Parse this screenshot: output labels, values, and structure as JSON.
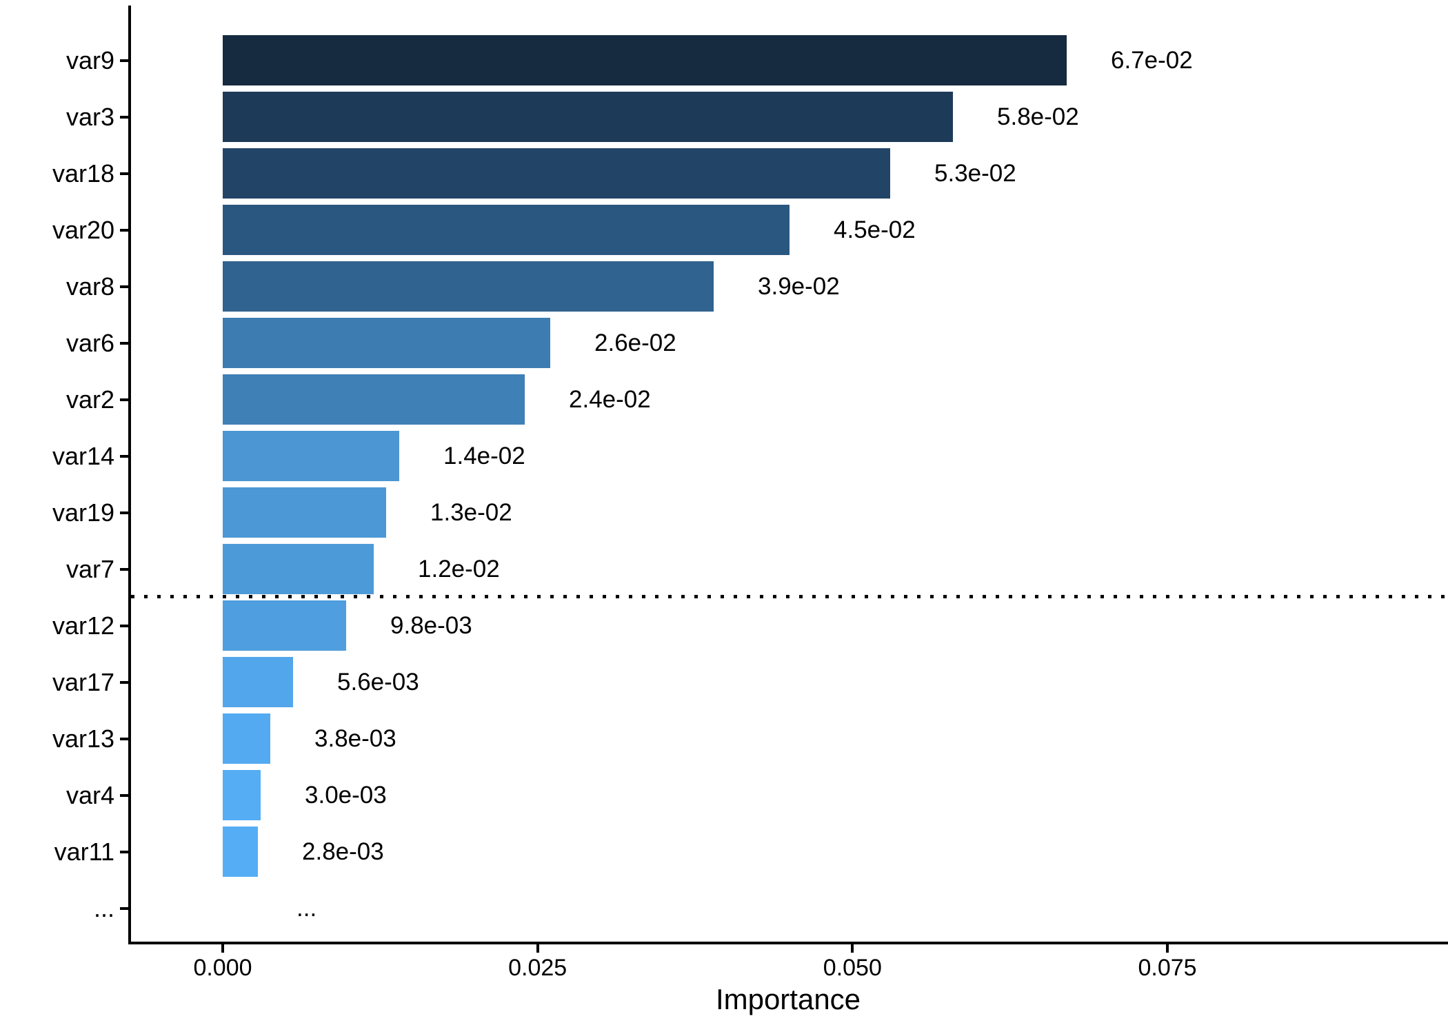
{
  "chart_data": {
    "type": "bar",
    "orientation": "horizontal",
    "title": "",
    "xlabel": "Importance",
    "ylabel": "",
    "xlim": [
      -0.0074,
      0.0973
    ],
    "grid": false,
    "legend": "none",
    "x_ticks": [
      {
        "value": 0.0,
        "label": "0.000"
      },
      {
        "value": 0.025,
        "label": "0.025"
      },
      {
        "value": 0.05,
        "label": "0.050"
      },
      {
        "value": 0.075,
        "label": "0.075"
      }
    ],
    "categories": [
      "var9",
      "var3",
      "var18",
      "var20",
      "var8",
      "var6",
      "var2",
      "var14",
      "var19",
      "var7",
      "var12",
      "var17",
      "var13",
      "var4",
      "var11",
      "..."
    ],
    "values": [
      0.067,
      0.058,
      0.053,
      0.045,
      0.039,
      0.026,
      0.024,
      0.014,
      0.013,
      0.012,
      0.0098,
      0.0056,
      0.0038,
      0.003,
      0.0028,
      null
    ],
    "bar_labels": [
      "6.7e-02",
      "5.8e-02",
      "5.3e-02",
      "4.5e-02",
      "3.9e-02",
      "2.6e-02",
      "2.4e-02",
      "1.4e-02",
      "1.3e-02",
      "1.2e-02",
      "9.8e-03",
      "5.6e-03",
      "3.8e-03",
      "3.0e-03",
      "2.8e-03",
      "..."
    ],
    "bar_colors": [
      "#162a40",
      "#1d3a58",
      "#224567",
      "#2a5780",
      "#30638f",
      "#3d7cb1",
      "#3f80b7",
      "#4b96d3",
      "#4c98d6",
      "#4d9ad9",
      "#4f9edf",
      "#52a6ec",
      "#54aaf1",
      "#55adf4",
      "#55aef5",
      null
    ],
    "threshold_line": {
      "style": "dotted",
      "color": "#000000",
      "after_category": "var7",
      "before_category": "var12"
    },
    "axis_color": "#000000",
    "background_color": "#ffffff"
  }
}
